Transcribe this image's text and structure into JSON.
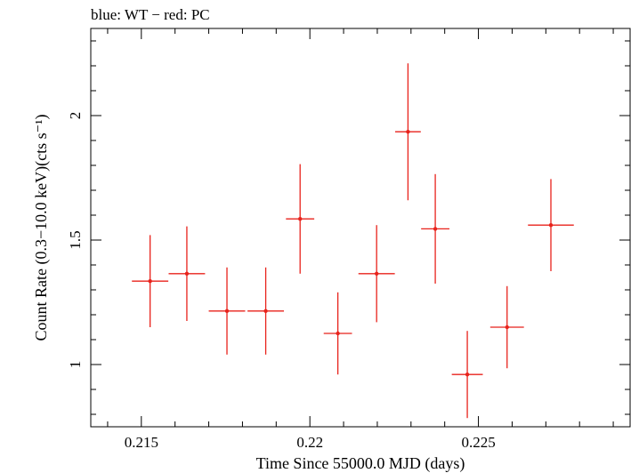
{
  "chart_data": {
    "type": "scatter",
    "title": "blue: WT − red: PC",
    "xlabel": "Time Since 55000.0 MJD (days)",
    "ylabel": "Count Rate (0.3−10.0 keV)(cts s⁻¹)",
    "xlim": [
      0.2135,
      0.2295
    ],
    "ylim": [
      0.75,
      2.35
    ],
    "x_ticks": [
      0.215,
      0.22,
      0.225
    ],
    "x_tick_labels": [
      "0.215",
      "0.22",
      "0.225"
    ],
    "y_ticks": [
      1,
      1.5,
      2
    ],
    "y_tick_labels": [
      "1",
      "1.5",
      "2"
    ],
    "grid": false,
    "series": [
      {
        "color": "#e8221b",
        "points": [
          {
            "x": 0.21526,
            "xerr": 0.00054,
            "y": 1.335,
            "yerr": 0.185
          },
          {
            "x": 0.21635,
            "xerr": 0.00054,
            "y": 1.365,
            "yerr": 0.19
          },
          {
            "x": 0.21754,
            "xerr": 0.00054,
            "y": 1.215,
            "yerr": 0.175
          },
          {
            "x": 0.21869,
            "xerr": 0.00054,
            "y": 1.215,
            "yerr": 0.175
          },
          {
            "x": 0.21971,
            "xerr": 0.00042,
            "y": 1.585,
            "yerr": 0.22
          },
          {
            "x": 0.22083,
            "xerr": 0.00042,
            "y": 1.125,
            "yerr": 0.165
          },
          {
            "x": 0.22198,
            "xerr": 0.00054,
            "y": 1.365,
            "yerr": 0.195
          },
          {
            "x": 0.22291,
            "xerr": 0.00038,
            "y": 1.935,
            "yerr": 0.275
          },
          {
            "x": 0.22372,
            "xerr": 0.00042,
            "y": 1.545,
            "yerr": 0.22
          },
          {
            "x": 0.22467,
            "xerr": 0.00046,
            "y": 0.96,
            "yerr": 0.175
          },
          {
            "x": 0.22585,
            "xerr": 0.0005,
            "y": 1.15,
            "yerr": 0.165
          },
          {
            "x": 0.22715,
            "xerr": 0.00068,
            "y": 1.56,
            "yerr": 0.185
          }
        ]
      }
    ]
  }
}
